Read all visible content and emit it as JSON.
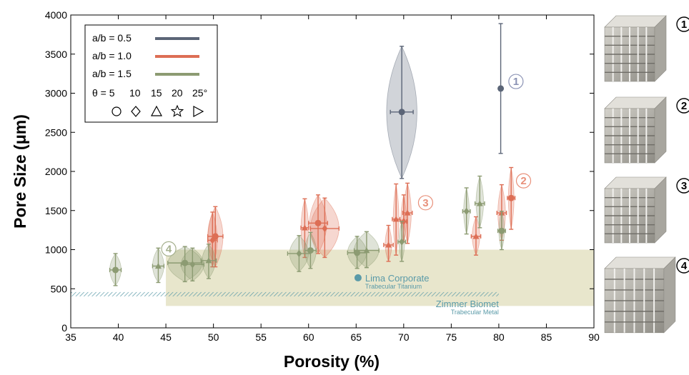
{
  "chart_data": {
    "type": "scatter",
    "title": "",
    "xlabel": "Porosity (%)",
    "ylabel": "Pore Size (μm)",
    "xlim": [
      35,
      90
    ],
    "ylim": [
      0,
      4000
    ],
    "x_ticks": [
      "35",
      "40",
      "45",
      "50",
      "55",
      "60",
      "65",
      "70",
      "75",
      "80",
      "85",
      "90"
    ],
    "y_ticks": [
      "0",
      "500",
      "1000",
      "1500",
      "2000",
      "2500",
      "3000",
      "3500",
      "4000"
    ],
    "grid": false,
    "legend": {
      "placement": "top-left",
      "series_labels": [
        "a/b = 0.5",
        "a/b = 1.0",
        "a/b = 1.5"
      ],
      "theta_title": "θ = 5",
      "theta_values": [
        "10",
        "15",
        "20",
        "25°"
      ]
    },
    "colors": {
      "ab05": "#5b6577",
      "ab10": "#dd6e55",
      "ab15": "#8c9b72",
      "band": "#e8e6cc",
      "ref": "#5a9aa8"
    },
    "series": [
      {
        "name": "a/b = 0.5",
        "points": [
          {
            "x": 69.8,
            "y": 2760,
            "x_err": 1.2,
            "y_low": 1910,
            "y_high": 3600,
            "shape": "circle",
            "ellipse_rx": 1.6
          },
          {
            "x": 80.2,
            "y": 3060,
            "x_err": 0,
            "y_low": 2230,
            "y_high": 3890,
            "shape": "circle",
            "ellipse_rx": 0
          }
        ]
      },
      {
        "name": "a/b = 1.0",
        "points": [
          {
            "x": 50.2,
            "y": 1170,
            "x_err": 0.8,
            "y_low": 780,
            "y_high": 1550,
            "shape": "circle",
            "ellipse_rx": 0.8
          },
          {
            "x": 49.9,
            "y": 1120,
            "x_err": 0.5,
            "y_low": 780,
            "y_high": 1480,
            "shape": "diamond",
            "ellipse_rx": 0.5
          },
          {
            "x": 59.6,
            "y": 1280,
            "x_err": 0.4,
            "y_low": 900,
            "y_high": 1650,
            "shape": "triangle",
            "ellipse_rx": 0.4
          },
          {
            "x": 61.0,
            "y": 1340,
            "x_err": 1.0,
            "y_low": 950,
            "y_high": 1700,
            "shape": "circle",
            "ellipse_rx": 0.9
          },
          {
            "x": 61.7,
            "y": 1270,
            "x_err": 1.5,
            "y_low": 900,
            "y_high": 1660,
            "shape": "diamond",
            "ellipse_rx": 1.5
          },
          {
            "x": 68.4,
            "y": 1060,
            "x_err": 0.5,
            "y_low": 850,
            "y_high": 1310,
            "shape": "triangle",
            "ellipse_rx": 0.35
          },
          {
            "x": 69.2,
            "y": 1390,
            "x_err": 0.4,
            "y_low": 930,
            "y_high": 1840,
            "shape": "triangle",
            "ellipse_rx": 0.3
          },
          {
            "x": 70.0,
            "y": 1360,
            "x_err": 0.3,
            "y_low": 1100,
            "y_high": 1700,
            "shape": "diamond",
            "ellipse_rx": 0.3
          },
          {
            "x": 70.4,
            "y": 1470,
            "x_err": 0.5,
            "y_low": 1080,
            "y_high": 1850,
            "shape": "triangle",
            "ellipse_rx": 0.4
          },
          {
            "x": 77.6,
            "y": 1170,
            "x_err": 0.5,
            "y_low": 930,
            "y_high": 1420,
            "shape": "triangle",
            "ellipse_rx": 0.4
          },
          {
            "x": 80.3,
            "y": 1470,
            "x_err": 0.5,
            "y_low": 1120,
            "y_high": 1830,
            "shape": "triangle",
            "ellipse_rx": 0.4
          },
          {
            "x": 81.3,
            "y": 1660,
            "x_err": 0.4,
            "y_low": 1260,
            "y_high": 2050,
            "shape": "circle",
            "ellipse_rx": 0.3
          }
        ]
      },
      {
        "name": "a/b = 1.5",
        "points": [
          {
            "x": 39.7,
            "y": 740,
            "x_err": 0.6,
            "y_low": 540,
            "y_high": 950,
            "shape": "circle",
            "ellipse_rx": 0.6
          },
          {
            "x": 44.2,
            "y": 790,
            "x_err": 0.6,
            "y_low": 580,
            "y_high": 1020,
            "shape": "triangle",
            "ellipse_rx": 0.6
          },
          {
            "x": 47.0,
            "y": 830,
            "x_err": 1.8,
            "y_low": 590,
            "y_high": 1040,
            "shape": "circle",
            "ellipse_rx": 1.8
          },
          {
            "x": 47.8,
            "y": 810,
            "x_err": 1.2,
            "y_low": 600,
            "y_high": 1020,
            "shape": "diamond",
            "ellipse_rx": 1.2
          },
          {
            "x": 49.5,
            "y": 860,
            "x_err": 0.8,
            "y_low": 630,
            "y_high": 1070,
            "shape": "triangle",
            "ellipse_rx": 0.7
          },
          {
            "x": 59.0,
            "y": 950,
            "x_err": 1.2,
            "y_low": 720,
            "y_high": 1180,
            "shape": "diamond",
            "ellipse_rx": 1.0
          },
          {
            "x": 60.2,
            "y": 990,
            "x_err": 0.6,
            "y_low": 760,
            "y_high": 1220,
            "shape": "circle",
            "ellipse_rx": 0.6
          },
          {
            "x": 65.1,
            "y": 960,
            "x_err": 1.0,
            "y_low": 760,
            "y_high": 1170,
            "shape": "circle",
            "ellipse_rx": 1.0
          },
          {
            "x": 66.1,
            "y": 990,
            "x_err": 1.3,
            "y_low": 770,
            "y_high": 1230,
            "shape": "triangle",
            "ellipse_rx": 1.3
          },
          {
            "x": 69.8,
            "y": 1100,
            "x_err": 0.4,
            "y_low": 850,
            "y_high": 1360,
            "shape": "diamond",
            "ellipse_rx": 0.3
          },
          {
            "x": 76.6,
            "y": 1490,
            "x_err": 0.4,
            "y_low": 1200,
            "y_high": 1790,
            "shape": "diamond",
            "ellipse_rx": 0.3
          },
          {
            "x": 78.0,
            "y": 1590,
            "x_err": 0.5,
            "y_low": 1280,
            "y_high": 1940,
            "shape": "triangle",
            "ellipse_rx": 0.4
          },
          {
            "x": 80.3,
            "y": 1240,
            "x_err": 0.4,
            "y_low": 1000,
            "y_high": 1490,
            "shape": "circle",
            "ellipse_rx": 0.3
          }
        ]
      }
    ],
    "callouts": [
      {
        "label": "1",
        "x": 81.8,
        "y": 3150,
        "series": "ab05"
      },
      {
        "label": "2",
        "x": 82.6,
        "y": 1880,
        "series": "ab10"
      },
      {
        "label": "3",
        "x": 72.3,
        "y": 1600,
        "series": "ab10"
      },
      {
        "label": "4",
        "x": 45.3,
        "y": 1010,
        "series": "ab15"
      }
    ],
    "band": {
      "x_from": 45,
      "x_to": 90,
      "y_from": 280,
      "y_to": 1000
    },
    "references": {
      "lima": {
        "name": "Lima Corporate",
        "sub": "Trabecular Titanium",
        "x": 65.2,
        "y": 640
      },
      "zimmer": {
        "name": "Zimmer Biomet",
        "sub": "Trabecular Metal",
        "x_from": 35,
        "x_to": 80,
        "y": 430
      }
    },
    "thumbnails": [
      "1",
      "2",
      "3",
      "4"
    ]
  }
}
